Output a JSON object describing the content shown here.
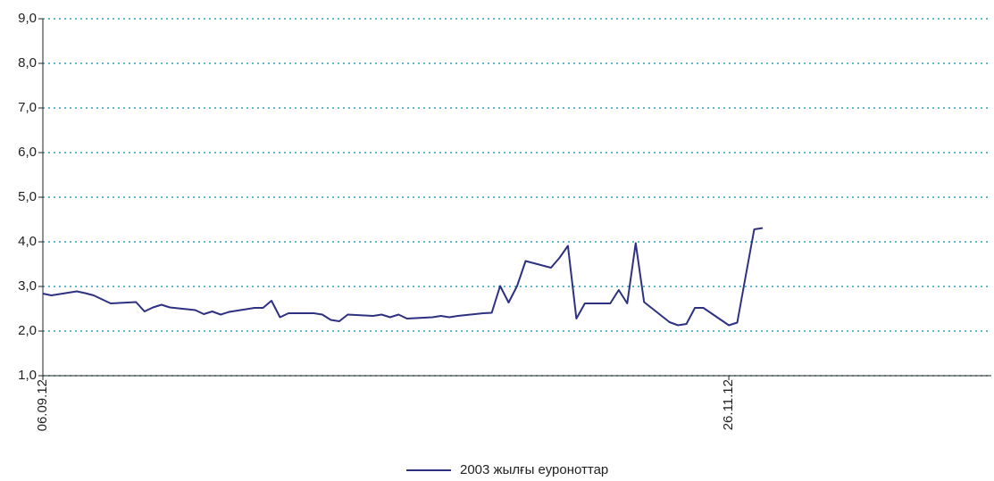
{
  "chart_data": {
    "type": "line",
    "categories": [
      "06.09.12",
      null,
      null,
      null,
      null,
      null,
      null,
      null,
      null,
      null,
      null,
      null,
      null,
      null,
      null,
      null,
      null,
      null,
      null,
      null,
      null,
      null,
      null,
      null,
      null,
      null,
      null,
      null,
      null,
      null,
      null,
      null,
      null,
      null,
      null,
      null,
      null,
      null,
      null,
      null,
      null,
      null,
      null,
      null,
      null,
      null,
      null,
      null,
      null,
      null,
      null,
      null,
      null,
      null,
      null,
      null,
      null,
      null,
      null,
      null,
      null,
      null,
      null,
      null,
      null,
      null,
      null,
      null,
      null,
      null,
      null,
      null,
      null,
      null,
      null,
      null,
      null,
      null,
      null,
      null,
      null,
      "26.11.12",
      null,
      null,
      null,
      null,
      null,
      null,
      null,
      null,
      null,
      null,
      null,
      null,
      null,
      null,
      null,
      null,
      null,
      null,
      null,
      null,
      null,
      null,
      null,
      null,
      null,
      null,
      null,
      null,
      null,
      null,
      null
    ],
    "series": [
      {
        "name": "2003 жылғы еуроноттар",
        "color": "#2e3180",
        "values": [
          2.84,
          2.8,
          2.83,
          2.86,
          2.89,
          2.85,
          2.8,
          2.71,
          2.62,
          2.63,
          2.64,
          2.65,
          2.44,
          2.53,
          2.59,
          2.53,
          2.51,
          2.49,
          2.47,
          2.38,
          2.44,
          2.37,
          2.43,
          2.46,
          2.49,
          2.52,
          2.52,
          2.68,
          2.31,
          2.4,
          2.4,
          2.4,
          2.4,
          2.37,
          2.25,
          2.22,
          2.37,
          2.36,
          2.35,
          2.34,
          2.37,
          2.31,
          2.37,
          2.28,
          2.29,
          2.3,
          2.31,
          2.34,
          2.31,
          2.34,
          2.36,
          2.38,
          2.4,
          2.41,
          3.01,
          2.64,
          3.01,
          3.57,
          3.52,
          3.47,
          3.42,
          3.64,
          3.91,
          2.28,
          2.62,
          2.62,
          2.62,
          2.62,
          2.92,
          2.62,
          3.97,
          2.65,
          2.5,
          2.35,
          2.2,
          2.13,
          2.16,
          2.52,
          2.52,
          2.39,
          2.26,
          2.13,
          2.19,
          3.24,
          4.28,
          4.31,
          null,
          null,
          null,
          null,
          null,
          null,
          null,
          null,
          null,
          null,
          null,
          null,
          null,
          null,
          null,
          null,
          null,
          null,
          null,
          null,
          null,
          null,
          null,
          null,
          null,
          null,
          null
        ]
      }
    ],
    "ylim": [
      1,
      9
    ],
    "yticks": [
      {
        "value": 1,
        "label": "1,0"
      },
      {
        "value": 2,
        "label": "2,0"
      },
      {
        "value": 3,
        "label": "3,0"
      },
      {
        "value": 4,
        "label": "4,0"
      },
      {
        "value": 5,
        "label": "5,0"
      },
      {
        "value": 6,
        "label": "6,0"
      },
      {
        "value": 7,
        "label": "7,0"
      },
      {
        "value": 8,
        "label": "8,0"
      },
      {
        "value": 9,
        "label": "9,0"
      }
    ],
    "grid": true,
    "grid_color": "#2aa3b8",
    "legend": "bottom"
  }
}
